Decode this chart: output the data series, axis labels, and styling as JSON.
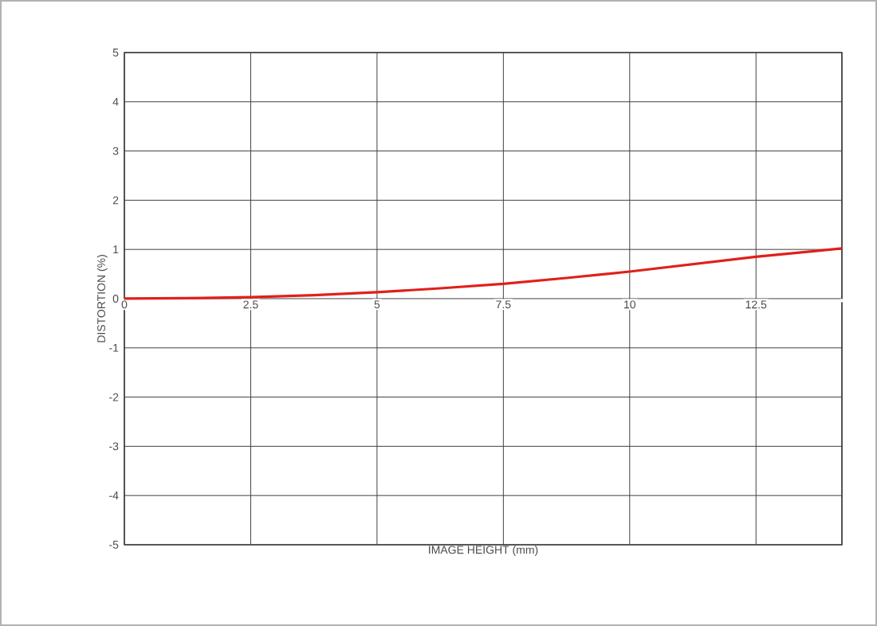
{
  "chart_data": {
    "type": "line",
    "xlabel": "IMAGE HEIGHT (mm)",
    "ylabel": "DISTORTION (%)",
    "x": [
      0,
      1.25,
      2.5,
      3.75,
      5,
      6.25,
      7.5,
      8.75,
      10,
      11.25,
      12.5,
      14.2
    ],
    "series": [
      {
        "color": "#e0201a",
        "values": [
          0,
          0.01,
          0.03,
          0.07,
          0.13,
          0.21,
          0.3,
          0.42,
          0.55,
          0.7,
          0.85,
          1.02
        ]
      }
    ],
    "xlim": [
      0,
      14.2
    ],
    "xticks": [
      0,
      2.5,
      5,
      7.5,
      10,
      12.5
    ],
    "ylim": [
      -5,
      5
    ],
    "yticks": [
      -5,
      -4,
      -3,
      -2,
      -1,
      0,
      1,
      2,
      3,
      4,
      5
    ],
    "grid": true,
    "marker": "none",
    "line_style": "solid"
  }
}
